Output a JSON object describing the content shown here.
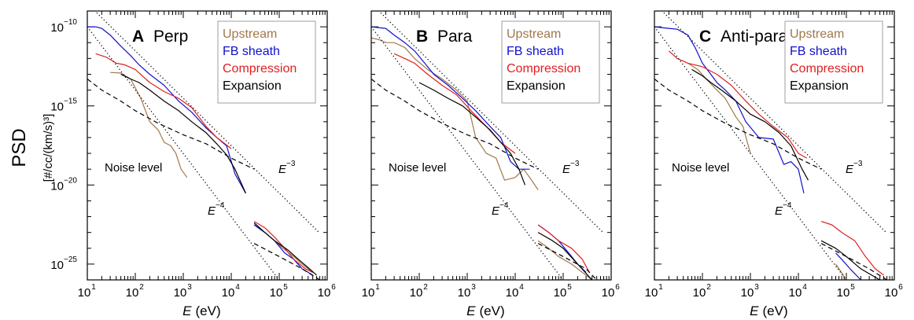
{
  "figure": {
    "ylabel_main": "PSD",
    "ylabel_unit": "[#/cc/(km/s)³]"
  },
  "chart_data": [
    {
      "type": "line",
      "panel_letter": "A",
      "panel_title": "Perp",
      "xlabel_symbol": "E",
      "xlabel_unit": "(eV)",
      "xscale": "log",
      "yscale": "log",
      "xlim": [
        10,
        1000000
      ],
      "ylim": [
        1e-26,
        1e-09
      ],
      "x_ticks": [
        "10",
        "10",
        "10",
        "10",
        "10",
        "10"
      ],
      "x_tick_exponents": [
        "1",
        "2",
        "3",
        "4",
        "5",
        "6"
      ],
      "y_ticks": [
        "10",
        "10",
        "10",
        "10"
      ],
      "y_tick_exponents": [
        "−10",
        "−15",
        "−20",
        "−25"
      ],
      "legend": {
        "placement": "top-right",
        "entries": [
          "Upstream",
          "FB sheath",
          "Compression",
          "Expansion"
        ]
      },
      "annotations": {
        "noise": "Noise level",
        "e3": "E",
        "e3_exp": "−3",
        "e4": "E",
        "e4_exp": "−4"
      },
      "series": [
        {
          "name": "Upstream",
          "color": "#a0784a",
          "x": [
            30,
            50,
            80,
            130,
            200,
            300,
            400,
            550,
            700,
            900,
            1200
          ],
          "y": [
            1.3e-13,
            1.2e-13,
            5e-14,
            3e-15,
            1e-16,
            3e-17,
            5e-18,
            3e-18,
            1e-18,
            1e-19,
            3e-20
          ]
        },
        {
          "name": "Upstream",
          "color": "#a0784a",
          "x": [
            30000,
            50000,
            80000,
            120000,
            200000,
            300000,
            500000
          ],
          "y": [
            3e-23,
            1e-23,
            3e-24,
            1e-24,
            3e-25,
            1e-25,
            3e-26
          ]
        },
        {
          "name": "FB sheath",
          "color": "#1010d0",
          "x": [
            10,
            15,
            20,
            30,
            50,
            80,
            120,
            200,
            400,
            800,
            1500,
            3000,
            5000,
            8000,
            12000,
            20000
          ],
          "y": [
            1e-10,
            1e-10,
            8e-11,
            3e-11,
            6e-12,
            1.5e-12,
            4e-13,
            1e-13,
            2e-14,
            2e-15,
            4e-16,
            4e-17,
            1e-17,
            3e-18,
            5e-20,
            3e-21
          ]
        },
        {
          "name": "FB sheath",
          "color": "#1010d0",
          "x": [
            30000,
            50000,
            80000,
            130000,
            200000,
            300000,
            500000
          ],
          "y": [
            3e-23,
            1e-23,
            3e-24,
            5e-25,
            2e-25,
            5e-26,
            2e-26
          ]
        },
        {
          "name": "Compression",
          "color": "#e02020",
          "x": [
            15,
            25,
            40,
            60,
            100,
            200,
            400,
            800,
            1500,
            3000,
            5000,
            10000
          ],
          "y": [
            2e-12,
            1.2e-12,
            5e-13,
            4e-13,
            2e-13,
            3e-14,
            8e-15,
            3e-15,
            8e-16,
            5e-17,
            1e-17,
            2e-18
          ]
        },
        {
          "name": "Compression",
          "color": "#e02020",
          "x": [
            30000,
            50000,
            80000,
            130000,
            200000,
            350000,
            500000
          ],
          "y": [
            5e-23,
            2e-23,
            5e-24,
            1e-24,
            2e-25,
            5e-26,
            3e-26
          ]
        },
        {
          "name": "Expansion",
          "color": "#000000",
          "x": [
            50,
            80,
            120,
            200,
            400,
            800,
            1500,
            3000,
            5000,
            8000,
            12000,
            20000
          ],
          "y": [
            1e-13,
            5e-14,
            3e-14,
            1e-14,
            2e-15,
            5e-16,
            1e-16,
            2e-17,
            4e-18,
            8e-19,
            1e-19,
            3e-21
          ]
        },
        {
          "name": "Expansion",
          "color": "#000000",
          "x": [
            30000,
            50000,
            80000,
            150000,
            250000,
            400000,
            600000
          ],
          "y": [
            4e-23,
            1e-23,
            3e-24,
            8e-25,
            2e-25,
            6e-26,
            2e-26
          ]
        },
        {
          "name": "Noise level",
          "color": "#000000",
          "dash": "dashed",
          "x": [
            10,
            20,
            50,
            100,
            300,
            1000,
            3000,
            10000,
            30000
          ],
          "y": [
            5e-14,
            1e-14,
            2e-15,
            5e-16,
            8e-17,
            1.5e-17,
            4e-18,
            5e-19,
            1e-19
          ]
        },
        {
          "name": "Noise level",
          "color": "#000000",
          "dash": "dashed",
          "x": [
            30000,
            100000,
            300000,
            700000
          ],
          "y": [
            2e-24,
            3e-25,
            5e-26,
            1e-26
          ]
        },
        {
          "name": "E^-3",
          "color": "#000000",
          "dash": "dotted",
          "x": [
            10,
            700000
          ],
          "y": [
            3e-09,
            9e-24
          ]
        },
        {
          "name": "E^-4",
          "color": "#000000",
          "dash": "dotted",
          "x": [
            10,
            200000
          ],
          "y": [
            1e-10,
            6e-28
          ]
        }
      ]
    },
    {
      "type": "line",
      "panel_letter": "B",
      "panel_title": "Para",
      "xlabel_symbol": "E",
      "xlabel_unit": "(eV)",
      "xscale": "log",
      "yscale": "log",
      "xlim": [
        10,
        1000000
      ],
      "ylim": [
        1e-26,
        1e-09
      ],
      "x_ticks": [
        "10",
        "10",
        "10",
        "10",
        "10",
        "10"
      ],
      "x_tick_exponents": [
        "1",
        "2",
        "3",
        "4",
        "5",
        "6"
      ],
      "y_ticks": [],
      "y_tick_exponents": [],
      "legend": {
        "placement": "top-right",
        "entries": [
          "Upstream",
          "FB sheath",
          "Compression",
          "Expansion"
        ]
      },
      "annotations": {
        "noise": "Noise level",
        "e3": "E",
        "e3_exp": "−3",
        "e4": "E",
        "e4_exp": "−4"
      },
      "series": [
        {
          "name": "Upstream",
          "color": "#a0784a",
          "x": [
            10,
            15,
            20,
            30,
            50,
            80,
            150,
            300,
            600,
            1000,
            1500,
            2500,
            4000,
            6000,
            10000,
            15000,
            20000,
            30000
          ],
          "y": [
            2e-11,
            1.5e-11,
            1e-11,
            1e-11,
            5e-12,
            1e-12,
            2e-13,
            5e-14,
            1e-14,
            2e-15,
            1e-17,
            1e-18,
            5e-19,
            2e-20,
            3e-20,
            1e-19,
            3e-20,
            5e-21
          ]
        },
        {
          "name": "Upstream",
          "color": "#a0784a",
          "x": [
            30000,
            50000,
            80000,
            150000,
            250000,
            400000
          ],
          "y": [
            3e-24,
            1e-24,
            3e-25,
            1e-25,
            3e-26,
            1e-26
          ]
        },
        {
          "name": "FB sheath",
          "color": "#1010d0",
          "x": [
            10,
            20,
            30,
            50,
            80,
            130,
            200,
            400,
            800,
            1500,
            3000,
            5000,
            8000,
            12000,
            20000
          ],
          "y": [
            1e-10,
            8e-11,
            3e-11,
            1e-11,
            3e-12,
            5e-13,
            1e-13,
            2e-14,
            3e-15,
            5e-16,
            5e-17,
            1e-17,
            3e-19,
            1e-19,
            1e-19
          ]
        },
        {
          "name": "FB sheath",
          "color": "#1010d0",
          "x": [
            30000,
            50000,
            80000,
            130000,
            200000,
            300000
          ],
          "y": [
            3e-23,
            1e-23,
            3e-24,
            5e-25,
            1e-25,
            3e-26
          ]
        },
        {
          "name": "Compression",
          "color": "#e02020",
          "x": [
            30,
            50,
            80,
            150,
            300,
            600,
            1200,
            2500,
            5000,
            10000
          ],
          "y": [
            2e-12,
            1e-12,
            5e-13,
            1e-13,
            2e-14,
            5e-15,
            5e-16,
            5e-17,
            5e-18,
            1e-18
          ]
        },
        {
          "name": "Compression",
          "color": "#e02020",
          "x": [
            30000,
            50000,
            80000,
            150000,
            250000,
            350000
          ],
          "y": [
            3e-23,
            1e-23,
            3e-24,
            1e-24,
            2e-25,
            3e-26
          ]
        },
        {
          "name": "Expansion",
          "color": "#000000",
          "x": [
            100,
            200,
            400,
            800,
            1500,
            3000,
            5000,
            8000,
            12000,
            16000
          ],
          "y": [
            3e-14,
            1e-14,
            3e-15,
            1e-15,
            2e-16,
            3e-17,
            5e-18,
            1e-18,
            1e-19,
            1e-20
          ]
        },
        {
          "name": "Expansion",
          "color": "#000000",
          "x": [
            30000,
            60000,
            100000,
            200000,
            400000
          ],
          "y": [
            1e-23,
            3e-24,
            1e-24,
            1e-25,
            1e-26
          ]
        },
        {
          "name": "Noise level",
          "color": "#000000",
          "dash": "dashed",
          "x": [
            10,
            20,
            50,
            100,
            300,
            1000,
            3000,
            10000,
            30000
          ],
          "y": [
            5e-14,
            1e-14,
            2e-15,
            5e-16,
            8e-17,
            1.5e-17,
            4e-18,
            5e-19,
            1e-19
          ]
        },
        {
          "name": "Noise level",
          "color": "#000000",
          "dash": "dashed",
          "x": [
            30000,
            100000,
            300000,
            500000
          ],
          "y": [
            2e-24,
            3e-25,
            5e-26,
            1e-26
          ]
        },
        {
          "name": "E^-3",
          "color": "#000000",
          "dash": "dotted",
          "x": [
            10,
            700000
          ],
          "y": [
            3e-09,
            9e-24
          ]
        },
        {
          "name": "E^-4",
          "color": "#000000",
          "dash": "dotted",
          "x": [
            10,
            200000
          ],
          "y": [
            1e-10,
            6e-28
          ]
        }
      ]
    },
    {
      "type": "line",
      "panel_letter": "C",
      "panel_title": "Anti-para",
      "xlabel_symbol": "E",
      "xlabel_unit": "(eV)",
      "xscale": "log",
      "yscale": "log",
      "xlim": [
        10,
        1000000
      ],
      "ylim": [
        1e-26,
        1e-09
      ],
      "x_ticks": [
        "10",
        "10",
        "10",
        "10",
        "10",
        "10"
      ],
      "x_tick_exponents": [
        "1",
        "2",
        "3",
        "4",
        "5",
        "6"
      ],
      "y_ticks": [],
      "y_tick_exponents": [],
      "legend": {
        "placement": "top-right",
        "entries": [
          "Upstream",
          "FB sheath",
          "Compression",
          "Expansion"
        ]
      },
      "annotations": {
        "noise": "Noise level",
        "e3": "E",
        "e3_exp": "−3",
        "e4": "E",
        "e4_exp": "−4"
      },
      "series": [
        {
          "name": "Upstream",
          "color": "#a0784a",
          "x": [
            50,
            80,
            120,
            200,
            300,
            500,
            700,
            1000
          ],
          "y": [
            5e-13,
            2e-13,
            5e-14,
            1e-14,
            3e-15,
            2e-16,
            5e-17,
            1e-18
          ]
        },
        {
          "name": "Upstream",
          "color": "#a0784a",
          "x": [
            60000,
            70000,
            100000,
            200000,
            400000
          ],
          "y": [
            1e-25,
            5e-26,
            1e-26,
            5e-27,
            3e-27
          ]
        },
        {
          "name": "FB sheath",
          "color": "#1010d0",
          "x": [
            10,
            20,
            30,
            50,
            70,
            100,
            150,
            200,
            300,
            500,
            800,
            1500,
            3000,
            5000,
            7000,
            10000,
            13000
          ],
          "y": [
            1e-10,
            8e-11,
            7e-11,
            3e-11,
            5e-12,
            5e-13,
            1e-13,
            3e-14,
            1e-14,
            2e-15,
            1e-16,
            1e-17,
            8e-18,
            2e-19,
            3e-19,
            1e-19,
            3e-21
          ]
        },
        {
          "name": "FB sheath",
          "color": "#1010d0",
          "x": [
            60000,
            80000,
            120000,
            200000,
            400000
          ],
          "y": [
            5e-25,
            2e-25,
            5e-26,
            1e-26,
            5e-27
          ]
        },
        {
          "name": "Compression",
          "color": "#e02020",
          "x": [
            20,
            30,
            50,
            100,
            200,
            400,
            800,
            1500,
            3000,
            6000,
            10000,
            15000
          ],
          "y": [
            3e-12,
            1e-12,
            5e-13,
            3e-13,
            1e-13,
            2e-14,
            2e-15,
            3e-16,
            5e-17,
            1e-17,
            1e-18,
            5e-19
          ]
        },
        {
          "name": "Compression",
          "color": "#e02020",
          "x": [
            30000,
            50000,
            80000,
            150000,
            250000,
            400000,
            600000
          ],
          "y": [
            5e-23,
            3e-23,
            1e-23,
            3e-24,
            3e-25,
            5e-26,
            2e-26
          ]
        },
        {
          "name": "Expansion",
          "color": "#000000",
          "x": [
            60,
            100,
            150,
            250,
            500,
            1000,
            2000,
            4000,
            7000,
            12000,
            16000
          ],
          "y": [
            2e-13,
            8e-14,
            3e-14,
            1e-14,
            2e-15,
            3e-16,
            1e-16,
            2e-17,
            3e-18,
            1e-19,
            2e-20
          ]
        },
        {
          "name": "Expansion",
          "color": "#000000",
          "x": [
            30000,
            60000,
            100000,
            200000,
            500000
          ],
          "y": [
            3e-24,
            1e-24,
            3e-25,
            5e-26,
            1e-26
          ]
        },
        {
          "name": "Noise level",
          "color": "#000000",
          "dash": "dashed",
          "x": [
            10,
            20,
            50,
            100,
            300,
            1000,
            3000,
            10000,
            30000
          ],
          "y": [
            5e-14,
            1e-14,
            2e-15,
            5e-16,
            8e-17,
            1.5e-17,
            4e-18,
            5e-19,
            1e-19
          ]
        },
        {
          "name": "Noise level",
          "color": "#000000",
          "dash": "dashed",
          "x": [
            30000,
            100000,
            300000,
            700000
          ],
          "y": [
            2e-24,
            3e-25,
            5e-26,
            1e-26
          ]
        },
        {
          "name": "E^-3",
          "color": "#000000",
          "dash": "dotted",
          "x": [
            10,
            700000
          ],
          "y": [
            3e-09,
            9e-24
          ]
        },
        {
          "name": "E^-4",
          "color": "#000000",
          "dash": "dotted",
          "x": [
            10,
            200000
          ],
          "y": [
            1e-10,
            6e-28
          ]
        }
      ]
    }
  ]
}
